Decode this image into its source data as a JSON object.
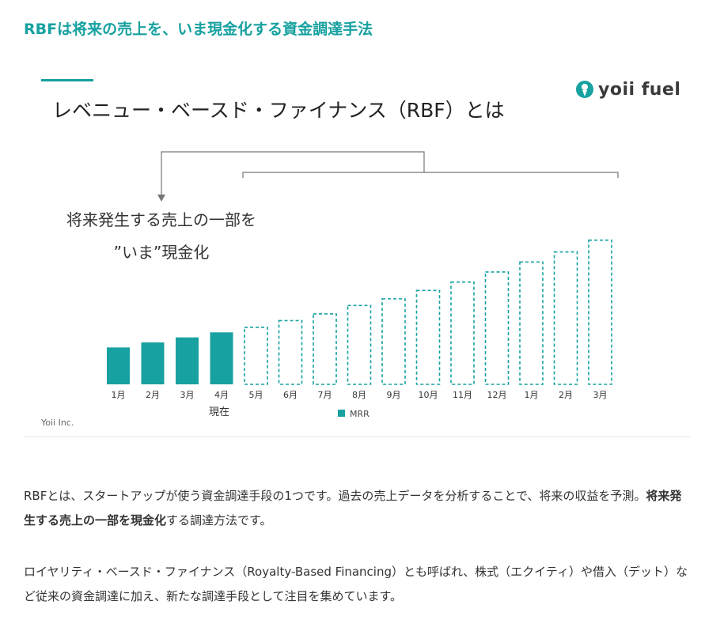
{
  "heading": "RBFは将来の売上を、いま現金化する資金調達手法",
  "figure": {
    "title": "レベニュー・ベースド・ファイナンス（RBF）とは",
    "logo_text": "yoii fuel",
    "annotation_line1": "将来発生する売上の一部を",
    "annotation_line2": "”いま”現金化",
    "now_label": "現在",
    "credit": "Yoii Inc."
  },
  "chart_data": {
    "type": "bar",
    "categories": [
      "1月",
      "2月",
      "3月",
      "4月",
      "5月",
      "6月",
      "7月",
      "8月",
      "9月",
      "10月",
      "11月",
      "12月",
      "1月",
      "2月",
      "3月"
    ],
    "series": [
      {
        "name": "MRR",
        "values": [
          22,
          25,
          28,
          31,
          34,
          38,
          42,
          47,
          51,
          56,
          61,
          67,
          73,
          79,
          86
        ]
      }
    ],
    "actual_count": 4,
    "projected_style": "dashed-outline",
    "colors": {
      "bar": "#17a1a0"
    },
    "yaxis_visible": false,
    "grid": false,
    "legend": "bottom-center"
  },
  "paragraphs": [
    {
      "before": "RBFとは、スタートアップが使う資金調達手段の1つです。過去の売上データを分析することで、将来の収益を予測。",
      "bold": "将来発生する売上の一部を現金化",
      "after": "する調達方法です。"
    },
    {
      "before": "ロイヤリティ・ベースド・ファイナンス（Royalty-Based Financing）とも呼ばれ、株式（エクイティ）や借入（デット）など従来の資金調達に加え、新たな調達手段として注目を集めています。",
      "bold": "",
      "after": ""
    }
  ]
}
